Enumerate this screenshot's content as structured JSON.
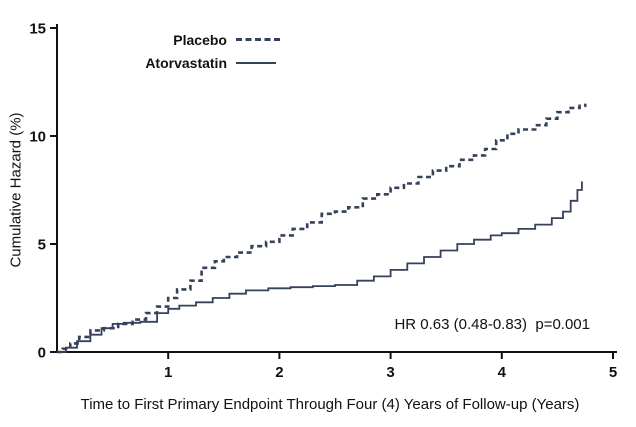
{
  "chart_data": {
    "type": "line",
    "title": "",
    "xlabel": "Time to First Primary Endpoint Through Four (4) Years of Follow-up (Years)",
    "ylabel": "Cumulative Hazard (%)",
    "annotation": "HR 0.63 (0.48-0.83)  p=0.001",
    "xlim": [
      0,
      5
    ],
    "ylim": [
      0,
      15
    ],
    "x_ticks": [
      1,
      2,
      3,
      4,
      5
    ],
    "y_ticks": [
      0,
      5,
      10,
      15
    ],
    "grid": false,
    "legend_position": "top-left-inside",
    "axis_color": "#111111",
    "line_color": "#36425c",
    "legend": [
      {
        "name": "Placebo",
        "style": "dashed"
      },
      {
        "name": "Atorvastatin",
        "style": "solid"
      }
    ],
    "series": [
      {
        "name": "Placebo",
        "style": "dashed",
        "points": [
          [
            0,
            0
          ],
          [
            0.05,
            0.15
          ],
          [
            0.12,
            0.4
          ],
          [
            0.2,
            0.7
          ],
          [
            0.3,
            1.0
          ],
          [
            0.42,
            1.1
          ],
          [
            0.55,
            1.3
          ],
          [
            0.68,
            1.5
          ],
          [
            0.8,
            1.8
          ],
          [
            0.9,
            2.1
          ],
          [
            1.0,
            2.5
          ],
          [
            1.08,
            2.9
          ],
          [
            1.2,
            3.3
          ],
          [
            1.3,
            3.9
          ],
          [
            1.42,
            4.2
          ],
          [
            1.5,
            4.4
          ],
          [
            1.62,
            4.6
          ],
          [
            1.75,
            4.9
          ],
          [
            1.88,
            5.1
          ],
          [
            2.0,
            5.4
          ],
          [
            2.12,
            5.7
          ],
          [
            2.25,
            6.0
          ],
          [
            2.38,
            6.4
          ],
          [
            2.5,
            6.5
          ],
          [
            2.62,
            6.7
          ],
          [
            2.75,
            7.1
          ],
          [
            2.88,
            7.3
          ],
          [
            3.0,
            7.6
          ],
          [
            3.12,
            7.8
          ],
          [
            3.25,
            8.1
          ],
          [
            3.38,
            8.4
          ],
          [
            3.5,
            8.6
          ],
          [
            3.62,
            8.9
          ],
          [
            3.75,
            9.1
          ],
          [
            3.85,
            9.4
          ],
          [
            3.95,
            9.8
          ],
          [
            4.05,
            10.1
          ],
          [
            4.15,
            10.3
          ],
          [
            4.3,
            10.5
          ],
          [
            4.4,
            10.8
          ],
          [
            4.5,
            11.1
          ],
          [
            4.6,
            11.3
          ],
          [
            4.7,
            11.4
          ],
          [
            4.75,
            11.5
          ]
        ]
      },
      {
        "name": "Atorvastatin",
        "style": "solid",
        "points": [
          [
            0,
            0
          ],
          [
            0.08,
            0.2
          ],
          [
            0.18,
            0.5
          ],
          [
            0.3,
            0.8
          ],
          [
            0.4,
            1.1
          ],
          [
            0.5,
            1.3
          ],
          [
            0.6,
            1.35
          ],
          [
            0.75,
            1.4
          ],
          [
            0.9,
            1.8
          ],
          [
            1.0,
            2.0
          ],
          [
            1.1,
            2.15
          ],
          [
            1.25,
            2.3
          ],
          [
            1.4,
            2.5
          ],
          [
            1.55,
            2.7
          ],
          [
            1.7,
            2.85
          ],
          [
            1.9,
            2.95
          ],
          [
            2.1,
            3.0
          ],
          [
            2.3,
            3.05
          ],
          [
            2.5,
            3.1
          ],
          [
            2.7,
            3.3
          ],
          [
            2.85,
            3.5
          ],
          [
            3.0,
            3.8
          ],
          [
            3.15,
            4.1
          ],
          [
            3.3,
            4.4
          ],
          [
            3.45,
            4.7
          ],
          [
            3.6,
            5.0
          ],
          [
            3.75,
            5.2
          ],
          [
            3.9,
            5.4
          ],
          [
            4.0,
            5.5
          ],
          [
            4.15,
            5.7
          ],
          [
            4.3,
            5.9
          ],
          [
            4.45,
            6.2
          ],
          [
            4.55,
            6.5
          ],
          [
            4.62,
            7.0
          ],
          [
            4.68,
            7.5
          ],
          [
            4.72,
            7.9
          ]
        ]
      }
    ]
  }
}
